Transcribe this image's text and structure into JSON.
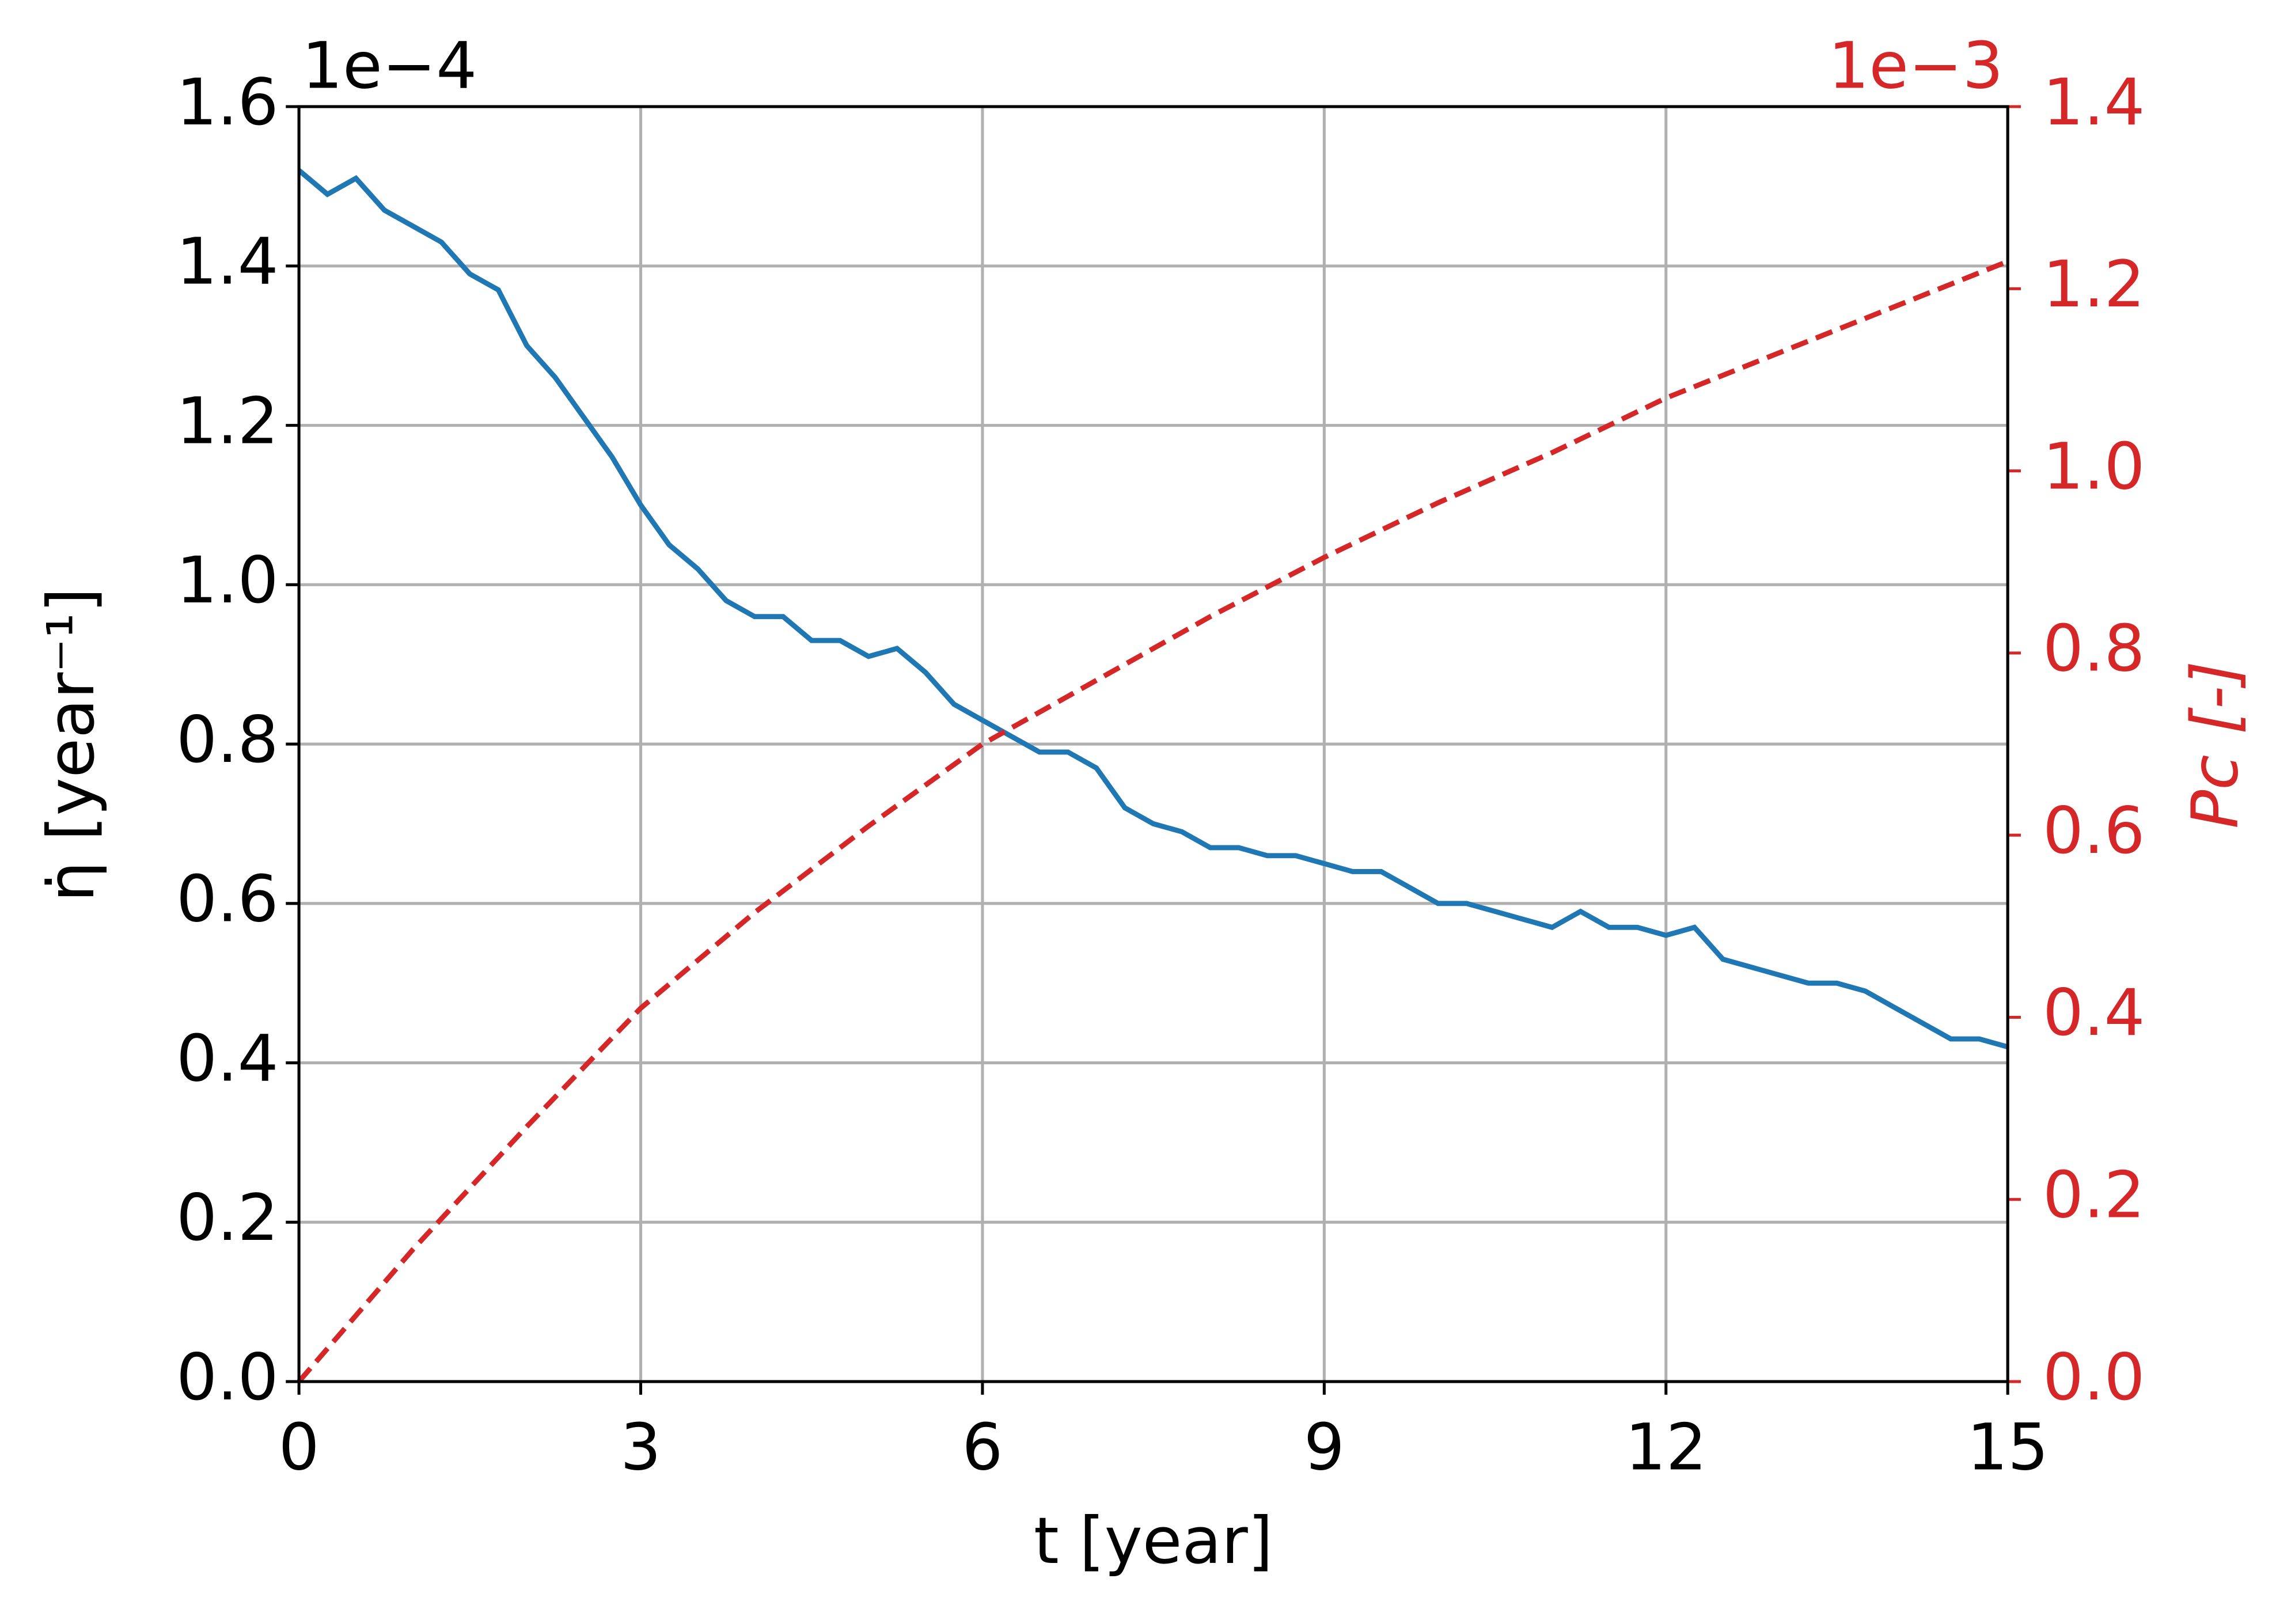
{
  "chart_data": {
    "type": "line",
    "xlabel": "t [year]",
    "ylabel": "η̇ [year⁻¹]",
    "y2label": "Pc [-]",
    "y_offset_label": "1e−4",
    "y2_offset_label": "1e−3",
    "xlim": [
      0,
      15
    ],
    "xticks": [
      0,
      3,
      6,
      9,
      12,
      15
    ],
    "ylim": [
      0,
      1.6
    ],
    "yticks": [
      {
        "value": 0,
        "label": "0.0"
      },
      0.2,
      0.4,
      0.6,
      0.8,
      {
        "value": 1,
        "label": "1.0"
      },
      1.2,
      1.4,
      1.6
    ],
    "y2lim": [
      0,
      1.4
    ],
    "y2ticks": [
      {
        "value": 0,
        "label": "0.0"
      },
      0.2,
      0.4,
      0.6,
      0.8,
      {
        "value": 1,
        "label": "1.0"
      },
      1.2,
      1.4
    ],
    "grid": true,
    "series": [
      {
        "color": "#1f77b4",
        "style": "solid",
        "x": [
          0,
          0.25,
          0.5,
          0.75,
          1,
          1.25,
          1.5,
          1.75,
          2,
          2.25,
          2.5,
          2.75,
          3,
          3.25,
          3.5,
          3.75,
          4,
          4.25,
          4.5,
          4.75,
          5,
          5.25,
          5.5,
          5.75,
          6,
          6.25,
          6.5,
          6.75,
          7,
          7.25,
          7.5,
          7.75,
          8,
          8.25,
          8.5,
          8.75,
          9,
          9.25,
          9.5,
          9.75,
          10,
          10.25,
          10.5,
          10.75,
          11,
          11.25,
          11.5,
          11.75,
          12,
          12.25,
          12.5,
          12.75,
          13,
          13.25,
          13.5,
          13.75,
          14,
          14.25,
          14.5,
          14.75,
          15
        ],
        "values": [
          1.52,
          1.49,
          1.51,
          1.47,
          1.45,
          1.43,
          1.39,
          1.37,
          1.3,
          1.26,
          1.21,
          1.16,
          1.1,
          1.05,
          1.02,
          0.98,
          0.96,
          0.96,
          0.93,
          0.93,
          0.91,
          0.92,
          0.89,
          0.85,
          0.83,
          0.81,
          0.79,
          0.79,
          0.77,
          0.72,
          0.7,
          0.69,
          0.67,
          0.67,
          0.66,
          0.66,
          0.65,
          0.64,
          0.64,
          0.62,
          0.6,
          0.6,
          0.59,
          0.58,
          0.57,
          0.59,
          0.57,
          0.57,
          0.56,
          0.57,
          0.53,
          0.52,
          0.51,
          0.5,
          0.5,
          0.49,
          0.47,
          0.45,
          0.43,
          0.43,
          0.42
        ]
      },
      {
        "color": "#d62728",
        "style": "dashed",
        "axis": "y2",
        "x": [
          0,
          1,
          2,
          3,
          4,
          5,
          6,
          7,
          8,
          9,
          10,
          11,
          12,
          13,
          14,
          15
        ],
        "values": [
          0,
          0.145,
          0.28,
          0.41,
          0.515,
          0.61,
          0.7,
          0.77,
          0.84,
          0.905,
          0.965,
          1.02,
          1.08,
          1.13,
          1.18,
          1.23
        ]
      }
    ]
  }
}
